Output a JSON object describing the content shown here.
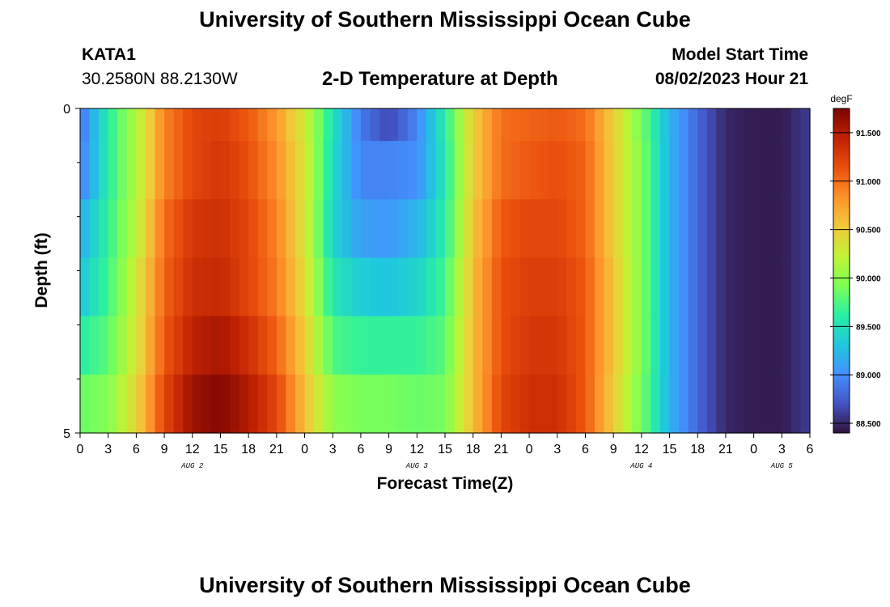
{
  "page": {
    "title_top": "University of Southern Mississippi Ocean Cube",
    "title_bottom": "University of Southern Mississippi Ocean Cube",
    "station_id": "KATA1",
    "coordinates": "30.2580N  88.2130W",
    "subtitle": "2-D Temperature at Depth",
    "model_start_label": "Model Start Time",
    "model_start_value": "08/02/2023 Hour 21"
  },
  "chart_data": {
    "type": "heatmap",
    "title": "2-D Temperature at Depth",
    "xlabel": "Forecast Time(Z)",
    "ylabel": "Depth (ft)",
    "x_tick_labels": [
      "0",
      "3",
      "6",
      "9",
      "12",
      "15",
      "18",
      "21",
      "0",
      "3",
      "6",
      "9",
      "12",
      "15",
      "18",
      "21",
      "0",
      "3",
      "6",
      "9",
      "12",
      "15",
      "18",
      "21",
      "0",
      "3",
      "6"
    ],
    "x_day_labels": [
      {
        "text": "AUG 2",
        "tick_index": 4
      },
      {
        "text": "AUG 3",
        "tick_index": 12
      },
      {
        "text": "AUG 4",
        "tick_index": 20
      },
      {
        "text": "AUG 5",
        "tick_index": 25
      }
    ],
    "x_range_hours": [
      0,
      78
    ],
    "y_tick_labels": [
      "0",
      "5"
    ],
    "y_range_ft": [
      0,
      5
    ],
    "depth_layers_ft": [
      0,
      1,
      2,
      3,
      4,
      5
    ],
    "colorbar": {
      "units": "degF",
      "min": 88.4,
      "max": 91.75,
      "tick_values": [
        "91.500",
        "91.000",
        "90.500",
        "90.000",
        "89.500",
        "89.000",
        "88.500"
      ],
      "colors": [
        "#30123b",
        "#4454c4",
        "#4490fe",
        "#1fc8de",
        "#29efa2",
        "#7dff56",
        "#c1f334",
        "#f1ca3a",
        "#fe922a",
        "#ea4f0d",
        "#be2102",
        "#7a0403"
      ]
    },
    "time_hours": [
      0,
      3,
      6,
      9,
      12,
      15,
      18,
      21,
      24,
      27,
      30,
      33,
      36,
      39,
      42,
      45,
      48,
      51,
      54,
      57,
      60,
      63,
      66,
      69,
      72,
      75,
      78
    ],
    "temperature_degF": [
      [
        88.85,
        89.6,
        90.15,
        90.9,
        91.2,
        91.25,
        91.1,
        90.8,
        90.3,
        89.5,
        88.9,
        88.65,
        88.95,
        89.6,
        90.5,
        91.0,
        91.05,
        91.1,
        91.0,
        90.5,
        89.9,
        89.2,
        88.8,
        88.5,
        88.45,
        88.45,
        88.6
      ],
      [
        88.9,
        89.6,
        90.15,
        90.9,
        91.2,
        91.3,
        91.15,
        90.85,
        90.35,
        89.45,
        88.95,
        88.95,
        89.0,
        89.55,
        90.5,
        91.0,
        91.1,
        91.15,
        91.05,
        90.5,
        89.95,
        89.2,
        88.8,
        88.5,
        88.45,
        88.45,
        88.6
      ],
      [
        89.15,
        89.65,
        90.2,
        91.0,
        91.3,
        91.35,
        91.2,
        90.9,
        90.35,
        89.4,
        89.1,
        89.05,
        89.2,
        89.6,
        90.55,
        91.1,
        91.2,
        91.2,
        91.05,
        90.5,
        89.95,
        89.2,
        88.8,
        88.5,
        88.45,
        88.45,
        88.6
      ],
      [
        89.3,
        89.7,
        90.3,
        91.05,
        91.35,
        91.4,
        91.2,
        90.95,
        90.4,
        89.55,
        89.35,
        89.3,
        89.4,
        89.7,
        90.6,
        91.15,
        91.25,
        91.25,
        91.1,
        90.55,
        89.95,
        89.2,
        88.8,
        88.5,
        88.45,
        88.45,
        88.6
      ],
      [
        89.6,
        89.8,
        90.35,
        91.1,
        91.45,
        91.55,
        91.35,
        91.05,
        90.5,
        89.75,
        89.65,
        89.65,
        89.65,
        89.8,
        90.6,
        91.15,
        91.3,
        91.3,
        91.1,
        90.55,
        89.95,
        89.2,
        88.8,
        88.5,
        88.45,
        88.45,
        88.6
      ],
      [
        89.85,
        89.95,
        90.45,
        91.2,
        91.6,
        91.7,
        91.5,
        91.2,
        90.6,
        90.0,
        89.9,
        89.9,
        89.85,
        89.9,
        90.6,
        91.2,
        91.35,
        91.35,
        91.1,
        90.5,
        89.9,
        89.2,
        88.8,
        88.5,
        88.45,
        88.45,
        88.6
      ]
    ]
  }
}
